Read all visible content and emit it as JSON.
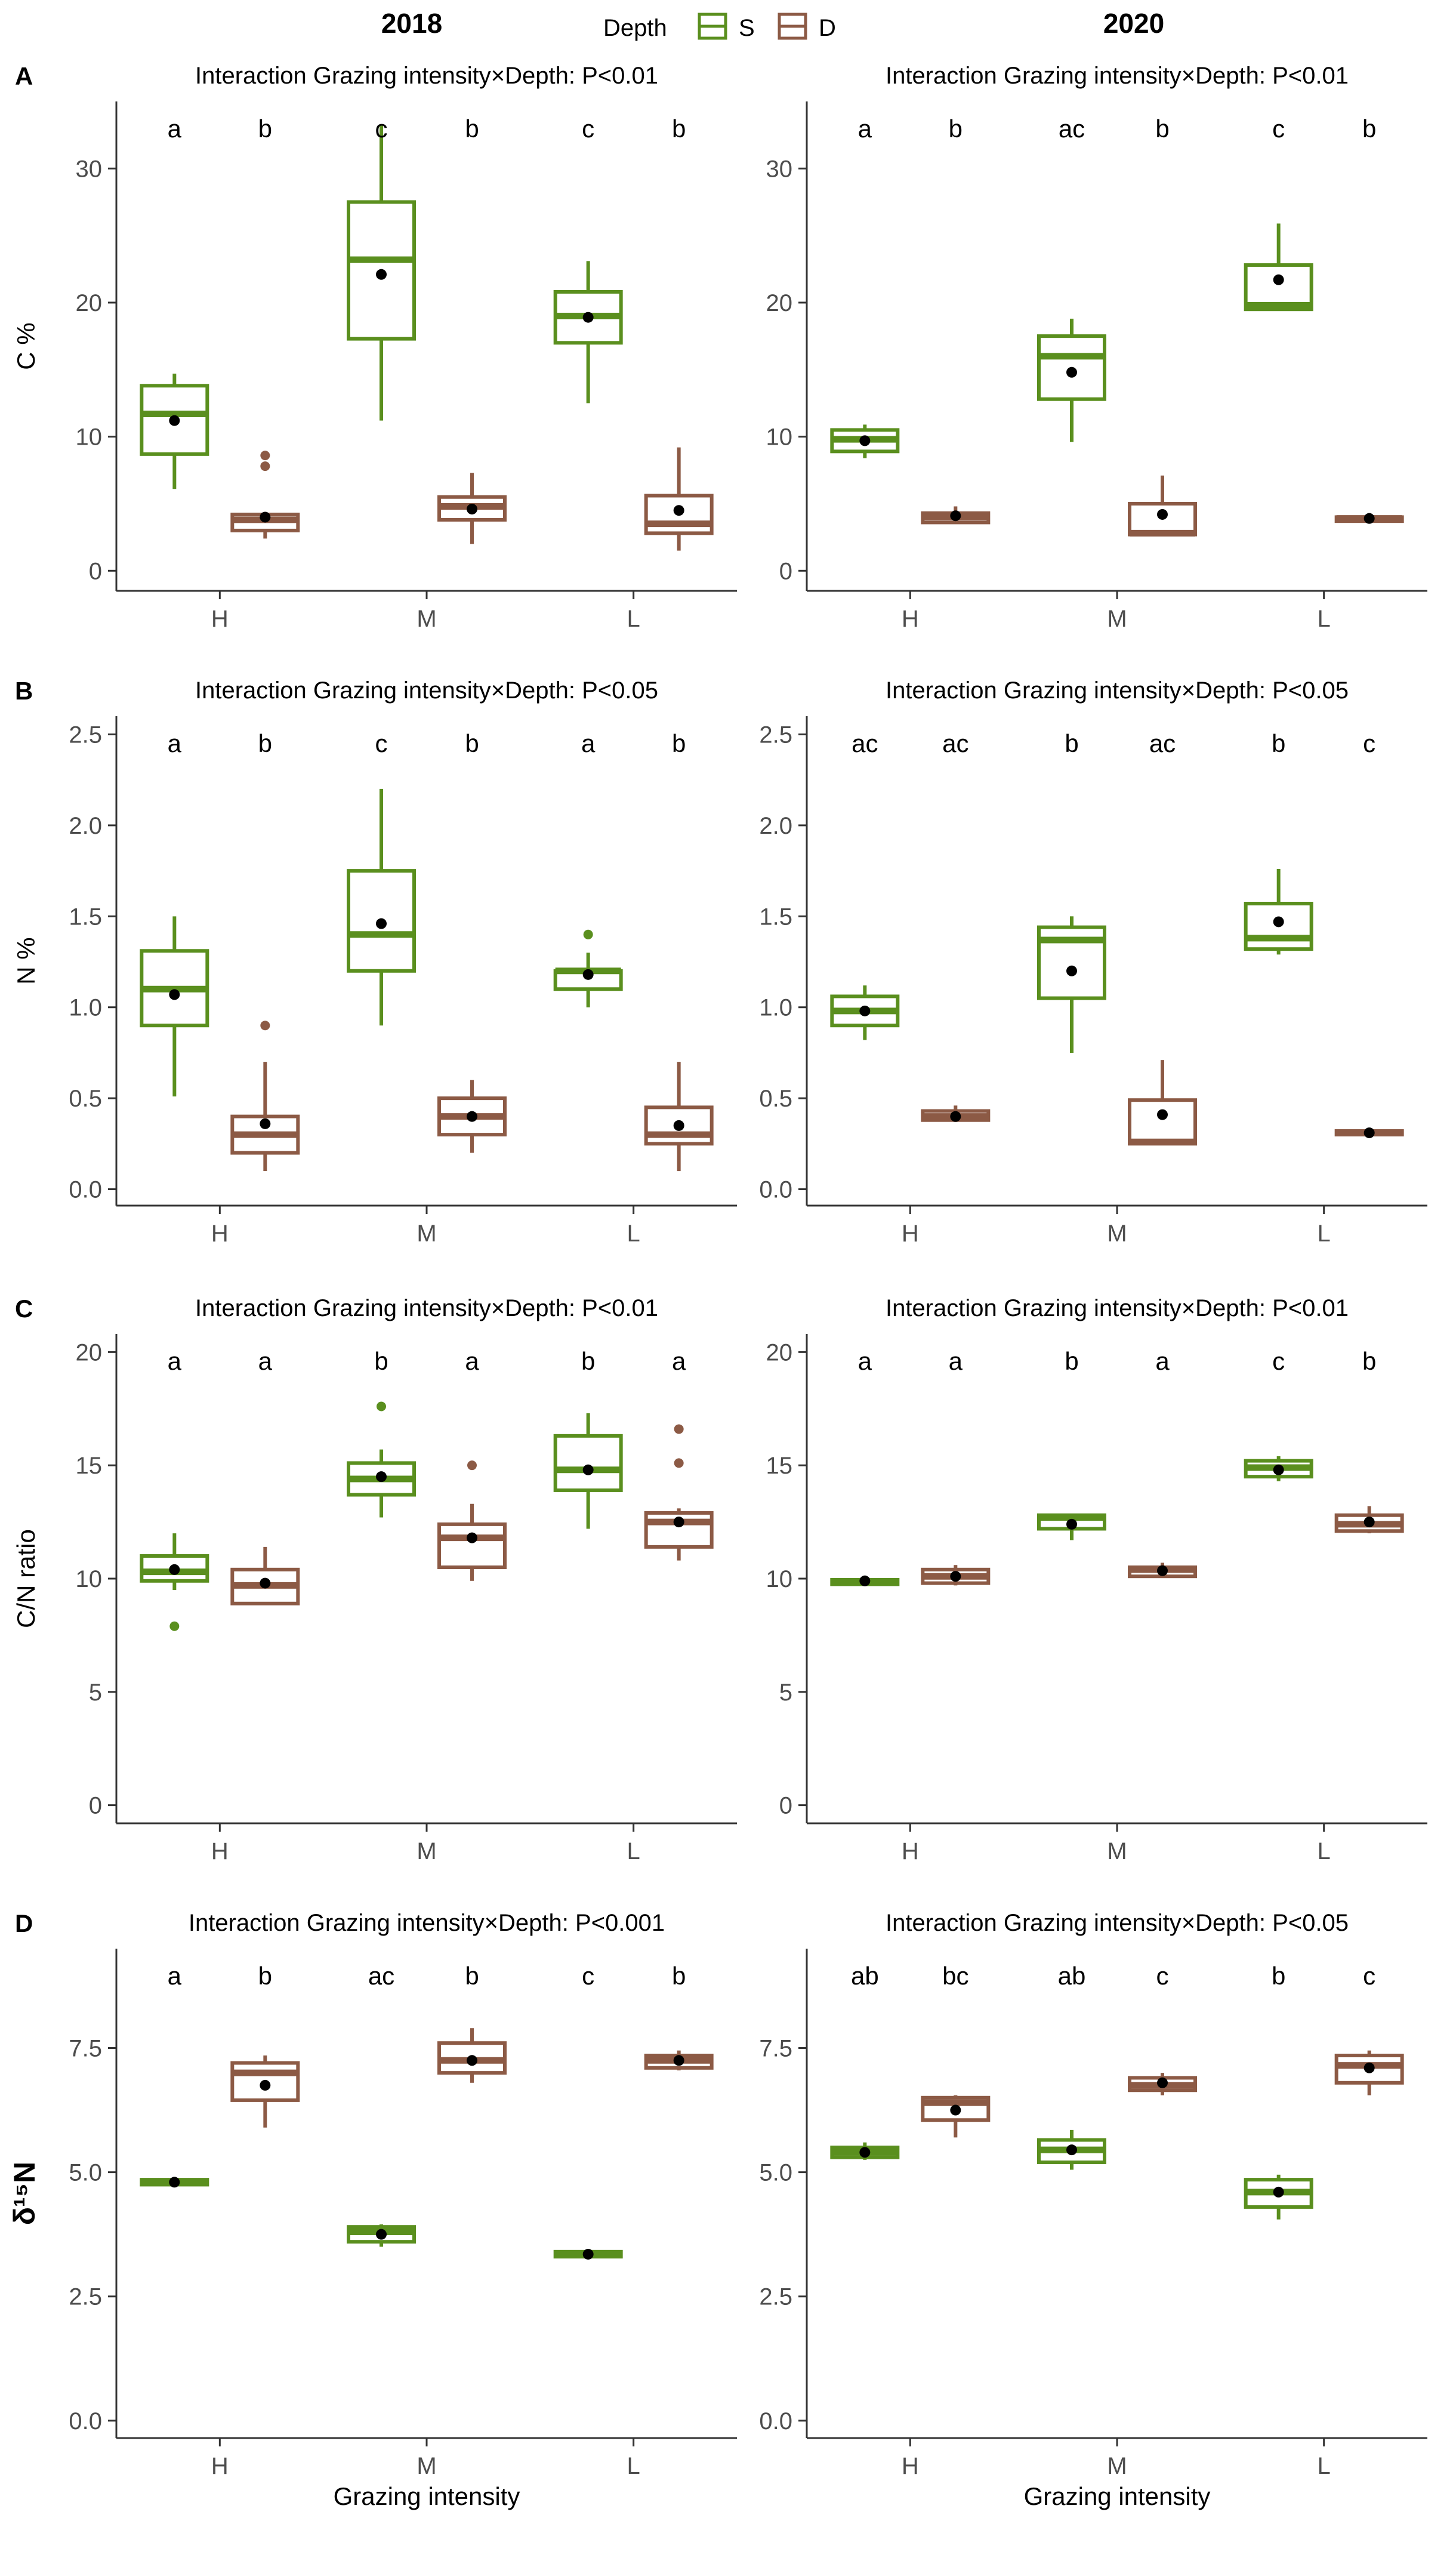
{
  "header": {
    "col_titles": [
      "2018",
      "2020"
    ],
    "legend_title": "Depth",
    "legend_items": [
      {
        "label": "S",
        "color": "#5a8f1e"
      },
      {
        "label": "D",
        "color": "#8c5a45"
      }
    ]
  },
  "colors": {
    "S": "#5a8f1e",
    "D": "#8c5a45",
    "mean": "#000000",
    "axis": "#333333"
  },
  "chart_data": [
    {
      "panel": "A",
      "year": "2018",
      "type": "box",
      "title": "Interaction Grazing intensity×Depth: P<0.01",
      "ylabel": "C %",
      "xlabel": "",
      "ylim": [
        -1.5,
        35
      ],
      "yticks": [
        0,
        10,
        20,
        30
      ],
      "ytick_labels": [
        "0",
        "10",
        "20",
        "30"
      ],
      "categories": [
        "H",
        "M",
        "L"
      ],
      "groups": [
        {
          "cat": "H",
          "depth": "S",
          "min": 6.1,
          "q1": 8.7,
          "median": 11.7,
          "q3": 13.8,
          "max": 14.7,
          "mean": 11.2,
          "outliers": [],
          "letter": "a"
        },
        {
          "cat": "H",
          "depth": "D",
          "min": 2.4,
          "q1": 3.0,
          "median": 3.8,
          "q3": 4.2,
          "max": 4.2,
          "mean": 4.0,
          "outliers": [
            7.8,
            8.6
          ],
          "letter": "b"
        },
        {
          "cat": "M",
          "depth": "S",
          "min": 11.2,
          "q1": 17.3,
          "median": 23.2,
          "q3": 27.5,
          "max": 33.3,
          "mean": 22.1,
          "outliers": [],
          "letter": "c"
        },
        {
          "cat": "M",
          "depth": "D",
          "min": 2.0,
          "q1": 3.8,
          "median": 4.8,
          "q3": 5.5,
          "max": 7.3,
          "mean": 4.6,
          "outliers": [],
          "letter": "b"
        },
        {
          "cat": "L",
          "depth": "S",
          "min": 12.5,
          "q1": 17.0,
          "median": 19.0,
          "q3": 20.8,
          "max": 23.1,
          "mean": 18.9,
          "outliers": [],
          "letter": "c"
        },
        {
          "cat": "L",
          "depth": "D",
          "min": 1.5,
          "q1": 2.8,
          "median": 3.5,
          "q3": 5.6,
          "max": 9.2,
          "mean": 4.5,
          "outliers": [],
          "letter": "b"
        }
      ]
    },
    {
      "panel": "",
      "year": "2020",
      "type": "box",
      "title": "Interaction Grazing intensity×Depth: P<0.01",
      "ylabel": "",
      "xlabel": "",
      "ylim": [
        -1.5,
        35
      ],
      "yticks": [
        0,
        10,
        20,
        30
      ],
      "ytick_labels": [
        "0",
        "10",
        "20",
        "30"
      ],
      "categories": [
        "H",
        "M",
        "L"
      ],
      "groups": [
        {
          "cat": "H",
          "depth": "S",
          "min": 8.4,
          "q1": 8.9,
          "median": 9.8,
          "q3": 10.5,
          "max": 10.9,
          "mean": 9.7,
          "outliers": [],
          "letter": "a"
        },
        {
          "cat": "H",
          "depth": "D",
          "min": 3.5,
          "q1": 3.6,
          "median": 4.0,
          "q3": 4.3,
          "max": 4.8,
          "mean": 4.1,
          "outliers": [],
          "letter": "b"
        },
        {
          "cat": "M",
          "depth": "S",
          "min": 9.6,
          "q1": 12.8,
          "median": 16.0,
          "q3": 17.5,
          "max": 18.8,
          "mean": 14.8,
          "outliers": [],
          "letter": "ac"
        },
        {
          "cat": "M",
          "depth": "D",
          "min": 2.6,
          "q1": 2.7,
          "median": 2.8,
          "q3": 5.0,
          "max": 7.1,
          "mean": 4.2,
          "outliers": [],
          "letter": "b"
        },
        {
          "cat": "L",
          "depth": "S",
          "min": 19.5,
          "q1": 19.5,
          "median": 19.8,
          "q3": 22.8,
          "max": 25.9,
          "mean": 21.7,
          "outliers": [],
          "letter": "c"
        },
        {
          "cat": "L",
          "depth": "D",
          "min": 3.6,
          "q1": 3.7,
          "median": 3.9,
          "q3": 4.0,
          "max": 4.0,
          "mean": 3.9,
          "outliers": [],
          "letter": "b"
        }
      ]
    },
    {
      "panel": "B",
      "year": "2018",
      "type": "box",
      "title": "Interaction Grazing intensity×Depth: P<0.05",
      "ylabel": "N %",
      "xlabel": "",
      "ylim": [
        -0.09,
        2.6
      ],
      "yticks": [
        0,
        0.5,
        1.0,
        1.5,
        2.0,
        2.5
      ],
      "ytick_labels": [
        "0.0",
        "0.5",
        "1.0",
        "1.5",
        "2.0",
        "2.5"
      ],
      "categories": [
        "H",
        "M",
        "L"
      ],
      "groups": [
        {
          "cat": "H",
          "depth": "S",
          "min": 0.51,
          "q1": 0.9,
          "median": 1.1,
          "q3": 1.31,
          "max": 1.5,
          "mean": 1.07,
          "outliers": [],
          "letter": "a"
        },
        {
          "cat": "H",
          "depth": "D",
          "min": 0.1,
          "q1": 0.2,
          "median": 0.3,
          "q3": 0.4,
          "max": 0.7,
          "mean": 0.36,
          "outliers": [
            0.9
          ],
          "letter": "b"
        },
        {
          "cat": "M",
          "depth": "S",
          "min": 0.9,
          "q1": 1.2,
          "median": 1.4,
          "q3": 1.75,
          "max": 2.2,
          "mean": 1.46,
          "outliers": [],
          "letter": "c"
        },
        {
          "cat": "M",
          "depth": "D",
          "min": 0.2,
          "q1": 0.3,
          "median": 0.4,
          "q3": 0.5,
          "max": 0.6,
          "mean": 0.4,
          "outliers": [],
          "letter": "b"
        },
        {
          "cat": "L",
          "depth": "S",
          "min": 1.0,
          "q1": 1.1,
          "median": 1.2,
          "q3": 1.2,
          "max": 1.3,
          "mean": 1.18,
          "outliers": [
            1.4
          ],
          "letter": "a"
        },
        {
          "cat": "L",
          "depth": "D",
          "min": 0.1,
          "q1": 0.25,
          "median": 0.3,
          "q3": 0.45,
          "max": 0.7,
          "mean": 0.35,
          "outliers": [],
          "letter": "b"
        }
      ]
    },
    {
      "panel": "",
      "year": "2020",
      "type": "box",
      "title": "Interaction Grazing intensity×Depth: P<0.05",
      "ylabel": "",
      "xlabel": "",
      "ylim": [
        -0.09,
        2.6
      ],
      "yticks": [
        0,
        0.5,
        1.0,
        1.5,
        2.0,
        2.5
      ],
      "ytick_labels": [
        "0.0",
        "0.5",
        "1.0",
        "1.5",
        "2.0",
        "2.5"
      ],
      "categories": [
        "H",
        "M",
        "L"
      ],
      "groups": [
        {
          "cat": "H",
          "depth": "S",
          "min": 0.82,
          "q1": 0.9,
          "median": 0.98,
          "q3": 1.06,
          "max": 1.12,
          "mean": 0.98,
          "outliers": [],
          "letter": "ac"
        },
        {
          "cat": "H",
          "depth": "D",
          "min": 0.37,
          "q1": 0.38,
          "median": 0.4,
          "q3": 0.43,
          "max": 0.46,
          "mean": 0.4,
          "outliers": [],
          "letter": "ac"
        },
        {
          "cat": "M",
          "depth": "S",
          "min": 0.75,
          "q1": 1.05,
          "median": 1.37,
          "q3": 1.44,
          "max": 1.5,
          "mean": 1.2,
          "outliers": [],
          "letter": "b"
        },
        {
          "cat": "M",
          "depth": "D",
          "min": 0.25,
          "q1": 0.25,
          "median": 0.26,
          "q3": 0.49,
          "max": 0.71,
          "mean": 0.41,
          "outliers": [],
          "letter": "ac"
        },
        {
          "cat": "L",
          "depth": "S",
          "min": 1.29,
          "q1": 1.32,
          "median": 1.38,
          "q3": 1.57,
          "max": 1.76,
          "mean": 1.47,
          "outliers": [],
          "letter": "b"
        },
        {
          "cat": "L",
          "depth": "D",
          "min": 0.3,
          "q1": 0.3,
          "median": 0.31,
          "q3": 0.32,
          "max": 0.32,
          "mean": 0.31,
          "outliers": [],
          "letter": "c"
        }
      ]
    },
    {
      "panel": "C",
      "year": "2018",
      "type": "box",
      "title": "Interaction Grazing intensity×Depth: P<0.01",
      "ylabel": "C/N ratio",
      "xlabel": "",
      "ylim": [
        -0.8,
        20.8
      ],
      "yticks": [
        0,
        5,
        10,
        15,
        20
      ],
      "ytick_labels": [
        "0",
        "5",
        "10",
        "15",
        "20"
      ],
      "categories": [
        "H",
        "M",
        "L"
      ],
      "groups": [
        {
          "cat": "H",
          "depth": "S",
          "min": 9.5,
          "q1": 9.9,
          "median": 10.3,
          "q3": 11.0,
          "max": 12.0,
          "mean": 10.4,
          "outliers": [
            7.9
          ],
          "letter": "a"
        },
        {
          "cat": "H",
          "depth": "D",
          "min": 8.9,
          "q1": 8.9,
          "median": 9.7,
          "q3": 10.4,
          "max": 11.4,
          "mean": 9.8,
          "outliers": [],
          "letter": "a"
        },
        {
          "cat": "M",
          "depth": "S",
          "min": 12.7,
          "q1": 13.7,
          "median": 14.4,
          "q3": 15.1,
          "max": 15.7,
          "mean": 14.5,
          "outliers": [
            17.6
          ],
          "letter": "b"
        },
        {
          "cat": "M",
          "depth": "D",
          "min": 9.9,
          "q1": 10.5,
          "median": 11.8,
          "q3": 12.4,
          "max": 13.3,
          "mean": 11.8,
          "outliers": [
            15.0
          ],
          "letter": "a"
        },
        {
          "cat": "L",
          "depth": "S",
          "min": 12.2,
          "q1": 13.9,
          "median": 14.8,
          "q3": 16.3,
          "max": 17.3,
          "mean": 14.8,
          "outliers": [],
          "letter": "b"
        },
        {
          "cat": "L",
          "depth": "D",
          "min": 10.8,
          "q1": 11.4,
          "median": 12.5,
          "q3": 12.9,
          "max": 13.1,
          "mean": 12.5,
          "outliers": [
            15.1,
            16.6
          ],
          "letter": "a"
        }
      ]
    },
    {
      "panel": "",
      "year": "2020",
      "type": "box",
      "title": "Interaction Grazing intensity×Depth: P<0.01",
      "ylabel": "",
      "xlabel": "",
      "ylim": [
        -0.8,
        20.8
      ],
      "yticks": [
        0,
        5,
        10,
        15,
        20
      ],
      "ytick_labels": [
        "0",
        "5",
        "10",
        "15",
        "20"
      ],
      "categories": [
        "H",
        "M",
        "L"
      ],
      "groups": [
        {
          "cat": "H",
          "depth": "S",
          "min": 9.7,
          "q1": 9.75,
          "median": 9.85,
          "q3": 9.95,
          "max": 10.0,
          "mean": 9.9,
          "outliers": [],
          "letter": "a"
        },
        {
          "cat": "H",
          "depth": "D",
          "min": 9.7,
          "q1": 9.8,
          "median": 10.1,
          "q3": 10.4,
          "max": 10.6,
          "mean": 10.1,
          "outliers": [],
          "letter": "a"
        },
        {
          "cat": "M",
          "depth": "S",
          "min": 11.7,
          "q1": 12.2,
          "median": 12.7,
          "q3": 12.8,
          "max": 12.8,
          "mean": 12.4,
          "outliers": [],
          "letter": "b"
        },
        {
          "cat": "M",
          "depth": "D",
          "min": 10.1,
          "q1": 10.1,
          "median": 10.4,
          "q3": 10.5,
          "max": 10.7,
          "mean": 10.35,
          "outliers": [],
          "letter": "a"
        },
        {
          "cat": "L",
          "depth": "S",
          "min": 14.3,
          "q1": 14.5,
          "median": 14.9,
          "q3": 15.2,
          "max": 15.4,
          "mean": 14.8,
          "outliers": [],
          "letter": "c"
        },
        {
          "cat": "L",
          "depth": "D",
          "min": 12.0,
          "q1": 12.1,
          "median": 12.4,
          "q3": 12.8,
          "max": 13.2,
          "mean": 12.5,
          "outliers": [],
          "letter": "b"
        }
      ]
    },
    {
      "panel": "D",
      "year": "2018",
      "type": "box",
      "title": "Interaction Grazing intensity×Depth: P<0.001",
      "ylabel": "δ¹⁵N",
      "xlabel": "Grazing intensity",
      "ylim": [
        -0.35,
        9.5
      ],
      "yticks": [
        0,
        2.5,
        5.0,
        7.5
      ],
      "ytick_labels": [
        "0.0",
        "2.5",
        "5.0",
        "7.5"
      ],
      "categories": [
        "H",
        "M",
        "L"
      ],
      "groups": [
        {
          "cat": "H",
          "depth": "S",
          "min": 4.75,
          "q1": 4.75,
          "median": 4.8,
          "q3": 4.85,
          "max": 4.85,
          "mean": 4.8,
          "outliers": [],
          "letter": "a"
        },
        {
          "cat": "H",
          "depth": "D",
          "min": 5.9,
          "q1": 6.45,
          "median": 7.0,
          "q3": 7.2,
          "max": 7.35,
          "mean": 6.75,
          "outliers": [],
          "letter": "b"
        },
        {
          "cat": "M",
          "depth": "S",
          "min": 3.5,
          "q1": 3.6,
          "median": 3.8,
          "q3": 3.9,
          "max": 3.95,
          "mean": 3.75,
          "outliers": [],
          "letter": "ac"
        },
        {
          "cat": "M",
          "depth": "D",
          "min": 6.8,
          "q1": 7.0,
          "median": 7.25,
          "q3": 7.6,
          "max": 7.9,
          "mean": 7.25,
          "outliers": [],
          "letter": "b"
        },
        {
          "cat": "L",
          "depth": "S",
          "min": 3.3,
          "q1": 3.3,
          "median": 3.35,
          "q3": 3.4,
          "max": 3.4,
          "mean": 3.35,
          "outliers": [],
          "letter": "c"
        },
        {
          "cat": "L",
          "depth": "D",
          "min": 7.05,
          "q1": 7.1,
          "median": 7.25,
          "q3": 7.35,
          "max": 7.45,
          "mean": 7.25,
          "outliers": [],
          "letter": "b"
        }
      ]
    },
    {
      "panel": "",
      "year": "2020",
      "type": "box",
      "title": "Interaction Grazing intensity×Depth: P<0.05",
      "ylabel": "",
      "xlabel": "Grazing intensity",
      "ylim": [
        -0.35,
        9.5
      ],
      "yticks": [
        0,
        2.5,
        5.0,
        7.5
      ],
      "ytick_labels": [
        "0.0",
        "2.5",
        "5.0",
        "7.5"
      ],
      "categories": [
        "H",
        "M",
        "L"
      ],
      "groups": [
        {
          "cat": "H",
          "depth": "S",
          "min": 5.25,
          "q1": 5.3,
          "median": 5.4,
          "q3": 5.5,
          "max": 5.6,
          "mean": 5.4,
          "outliers": [],
          "letter": "ab"
        },
        {
          "cat": "H",
          "depth": "D",
          "min": 5.7,
          "q1": 6.05,
          "median": 6.4,
          "q3": 6.5,
          "max": 6.55,
          "mean": 6.25,
          "outliers": [],
          "letter": "bc"
        },
        {
          "cat": "M",
          "depth": "S",
          "min": 5.05,
          "q1": 5.2,
          "median": 5.45,
          "q3": 5.65,
          "max": 5.85,
          "mean": 5.45,
          "outliers": [],
          "letter": "ab"
        },
        {
          "cat": "M",
          "depth": "D",
          "min": 6.55,
          "q1": 6.65,
          "median": 6.75,
          "q3": 6.9,
          "max": 7.0,
          "mean": 6.8,
          "outliers": [],
          "letter": "c"
        },
        {
          "cat": "L",
          "depth": "S",
          "min": 4.05,
          "q1": 4.3,
          "median": 4.6,
          "q3": 4.85,
          "max": 4.95,
          "mean": 4.6,
          "outliers": [],
          "letter": "b"
        },
        {
          "cat": "L",
          "depth": "D",
          "min": 6.55,
          "q1": 6.8,
          "median": 7.15,
          "q3": 7.35,
          "max": 7.45,
          "mean": 7.1,
          "outliers": [],
          "letter": "c"
        }
      ]
    }
  ]
}
